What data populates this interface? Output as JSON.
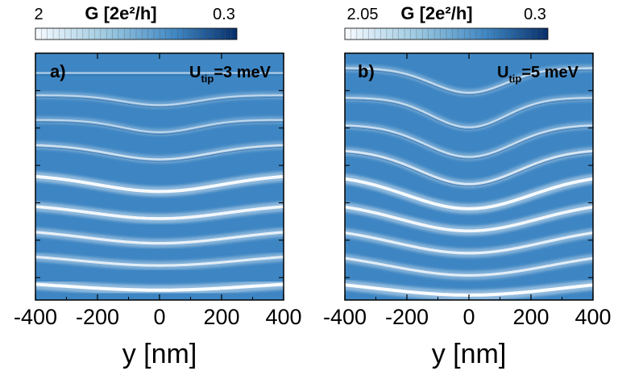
{
  "figure": {
    "panels": [
      {
        "panel_label": "a)",
        "tip_symbol": "U",
        "tip_subscript": "tip",
        "tip_value": "=3 meV",
        "colorbar": {
          "title": "G [2e²/h]",
          "min_label": "2",
          "max_label": "0.3"
        }
      },
      {
        "panel_label": "b)",
        "tip_symbol": "U",
        "tip_subscript": "tip",
        "tip_value": "=5 meV",
        "colorbar": {
          "title": "G [2e²/h]",
          "min_label": "2.05",
          "max_label": "0.3"
        }
      }
    ]
  },
  "colors": {
    "background_blue": "#3e86c3",
    "ridge_white": "#ffffff",
    "island_dark": "#1a4f8a",
    "colorbar_light": "#f7fbff",
    "colorbar_dark": "#08306b"
  },
  "chart_data": [
    {
      "type": "heatmap",
      "title": "",
      "xlabel": "y [nm]",
      "ylabel": "",
      "xlim": [
        -400,
        400
      ],
      "x_ticks": [
        -400,
        -200,
        0,
        200,
        400
      ],
      "x_tick_labels": [
        "-400",
        "-200",
        "0",
        "200",
        "400"
      ],
      "colorbar": {
        "label": "G [2e²/h]",
        "min": 2,
        "max": 0.3,
        "scale": "Blues"
      },
      "annotation": "U_tip=3 meV",
      "panel": "a)",
      "ridges": [
        {
          "flat_level": 0.08,
          "dip_depth": 0.0,
          "width_nm": 60,
          "brightness": 0.4
        },
        {
          "flat_level": 0.17,
          "dip_depth": 0.04,
          "width_nm": 60,
          "brightness": 0.35
        },
        {
          "flat_level": 0.27,
          "dip_depth": 0.05,
          "width_nm": 60,
          "brightness": 0.35
        },
        {
          "flat_level": 0.37,
          "dip_depth": 0.06,
          "width_nm": 80,
          "brightness": 0.5
        },
        {
          "flat_level": 0.49,
          "dip_depth": 0.07,
          "width_nm": 100,
          "brightness": 0.95
        },
        {
          "flat_level": 0.61,
          "dip_depth": 0.06,
          "width_nm": 110,
          "brightness": 0.9
        },
        {
          "flat_level": 0.71,
          "dip_depth": 0.06,
          "width_nm": 120,
          "brightness": 0.75
        },
        {
          "flat_level": 0.81,
          "dip_depth": 0.05,
          "width_nm": 130,
          "brightness": 0.7
        },
        {
          "flat_level": 0.92,
          "dip_depth": 0.04,
          "width_nm": 150,
          "brightness": 1.0
        }
      ]
    },
    {
      "type": "heatmap",
      "title": "",
      "xlabel": "y [nm]",
      "ylabel": "",
      "xlim": [
        -400,
        400
      ],
      "x_ticks": [
        -400,
        -200,
        0,
        200,
        400
      ],
      "x_tick_labels": [
        "-400",
        "-200",
        "0",
        "200",
        "400"
      ],
      "colorbar": {
        "label": "G [2e²/h]",
        "min": 2.05,
        "max": 0.3,
        "scale": "Blues"
      },
      "annotation": "U_tip=5 meV",
      "panel": "b)",
      "ridges": [
        {
          "flat_level": 0.06,
          "dip_depth": 0.1,
          "width_nm": 60,
          "brightness": 0.4
        },
        {
          "flat_level": 0.18,
          "dip_depth": 0.12,
          "width_nm": 60,
          "brightness": 0.4
        },
        {
          "flat_level": 0.29,
          "dip_depth": 0.13,
          "width_nm": 70,
          "brightness": 0.45
        },
        {
          "flat_level": 0.39,
          "dip_depth": 0.14,
          "width_nm": 80,
          "brightness": 0.6
        },
        {
          "flat_level": 0.49,
          "dip_depth": 0.14,
          "width_nm": 100,
          "brightness": 0.95
        },
        {
          "flat_level": 0.6,
          "dip_depth": 0.12,
          "width_nm": 110,
          "brightness": 0.9
        },
        {
          "flat_level": 0.7,
          "dip_depth": 0.11,
          "width_nm": 120,
          "brightness": 0.75
        },
        {
          "flat_level": 0.8,
          "dip_depth": 0.1,
          "width_nm": 130,
          "brightness": 0.7
        },
        {
          "flat_level": 0.91,
          "dip_depth": 0.07,
          "width_nm": 150,
          "brightness": 1.0
        }
      ]
    }
  ]
}
